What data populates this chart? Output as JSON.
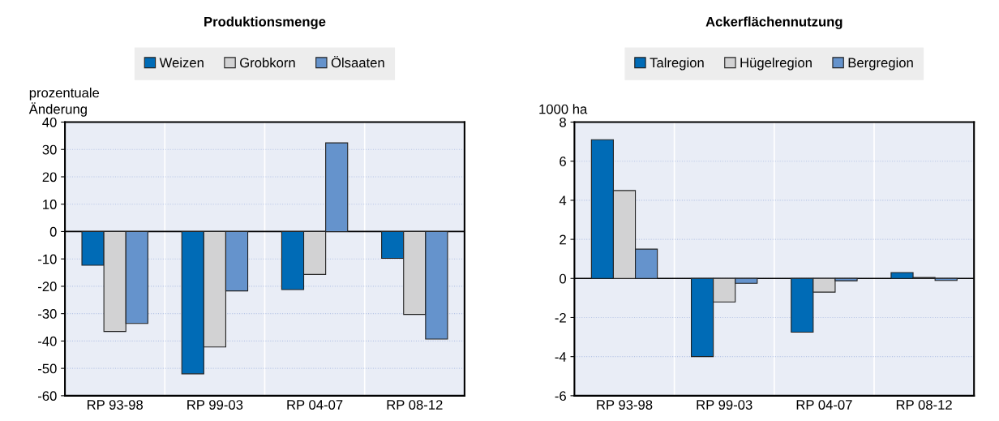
{
  "chart_data": [
    {
      "type": "bar",
      "title": "Produktionsmenge",
      "ylabel": "prozentuale\nÄnderung",
      "categories": [
        "RP 93-98",
        "RP 99-03",
        "RP 04-07",
        "RP 08-12"
      ],
      "series": [
        {
          "name": "Weizen",
          "color": "#006bb6",
          "values": [
            -12.3,
            -52,
            -21.2,
            -9.8
          ]
        },
        {
          "name": "Grobkorn",
          "color": "#d2d2d3",
          "values": [
            -36.5,
            -42.2,
            -15.7,
            -30.3
          ]
        },
        {
          "name": "Ölsaaten",
          "color": "#6593cc",
          "values": [
            -33.6,
            -21.7,
            32.4,
            -39.3
          ]
        }
      ],
      "ylim": [
        -60,
        40
      ],
      "yticks": [
        -60,
        -50,
        -40,
        -30,
        -20,
        -10,
        0,
        10,
        20,
        30,
        40
      ],
      "grid": "y",
      "legend": "top"
    },
    {
      "type": "bar",
      "title": "Ackerflächennutzung",
      "ylabel": "1000 ha",
      "categories": [
        "RP 93-98",
        "RP 99-03",
        "RP 04-07",
        "RP 08-12"
      ],
      "series": [
        {
          "name": "Talregion",
          "color": "#006bb6",
          "values": [
            7.1,
            -4.0,
            -2.75,
            0.3
          ]
        },
        {
          "name": "Hügelregion",
          "color": "#d2d2d3",
          "values": [
            4.5,
            -1.2,
            -0.7,
            0.05
          ]
        },
        {
          "name": "Bergregion",
          "color": "#6593cc",
          "values": [
            1.5,
            -0.25,
            -0.12,
            -0.1
          ]
        }
      ],
      "ylim": [
        -6,
        8
      ],
      "yticks": [
        -6,
        -4,
        -2,
        0,
        2,
        4,
        6,
        8
      ],
      "grid": "y",
      "legend": "top"
    }
  ]
}
